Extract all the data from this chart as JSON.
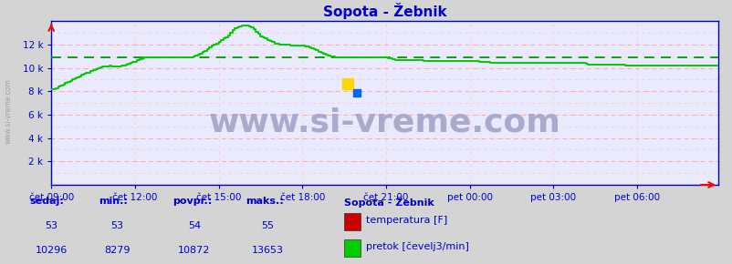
{
  "title": "Sopota - Žebnik",
  "bg_color": "#d4d4d4",
  "plot_bg_color": "#eaeaff",
  "grid_color_major": "#ffaaaa",
  "grid_color_minor": "#ffcccc",
  "ylim": [
    0,
    14000
  ],
  "xtick_positions": [
    0,
    36,
    72,
    108,
    144,
    180,
    216,
    252
  ],
  "xtick_labels": [
    "čet 09:00",
    "čet 12:00",
    "čet 15:00",
    "čet 18:00",
    "čet 21:00",
    "pet 00:00",
    "pet 03:00",
    "pet 06:00"
  ],
  "avg_line_value": 10872,
  "avg_line_color": "#009900",
  "flow_color": "#00cc00",
  "temp_color": "#cc0000",
  "watermark_text": "www.si-vreme.com",
  "watermark_color": "#aaaacc",
  "watermark_fontsize": 26,
  "sidebar_text": "www.si-vreme.com",
  "sidebar_color": "#999999",
  "footer_bg": "#ffffff",
  "footer_text_color": "#0000cc",
  "title_color": "#0000cc",
  "axis_color": "#0000cc",
  "tick_color": "#0000cc",
  "flow_data": [
    8200,
    8200,
    8250,
    8400,
    8500,
    8600,
    8700,
    8800,
    8900,
    9000,
    9100,
    9200,
    9300,
    9400,
    9500,
    9550,
    9600,
    9700,
    9800,
    9900,
    10000,
    10050,
    10100,
    10100,
    10150,
    10200,
    10150,
    10100,
    10100,
    10150,
    10200,
    10200,
    10250,
    10350,
    10450,
    10500,
    10550,
    10650,
    10750,
    10850,
    10900,
    10900,
    10900,
    10900,
    10900,
    10900,
    10900,
    10900,
    10900,
    10900,
    10900,
    10900,
    10900,
    10900,
    10900,
    10900,
    10900,
    10900,
    10900,
    10900,
    10900,
    10950,
    11050,
    11150,
    11250,
    11350,
    11450,
    11600,
    11750,
    11900,
    12000,
    12100,
    12200,
    12350,
    12500,
    12650,
    12800,
    13000,
    13200,
    13400,
    13500,
    13550,
    13600,
    13600,
    13600,
    13550,
    13450,
    13300,
    13100,
    12900,
    12700,
    12600,
    12500,
    12400,
    12300,
    12200,
    12100,
    12050,
    12000,
    12000,
    12000,
    12000,
    12000,
    11950,
    11900,
    11900,
    11900,
    11900,
    11900,
    11850,
    11800,
    11750,
    11700,
    11600,
    11500,
    11400,
    11300,
    11200,
    11100,
    11050,
    11000,
    10950,
    10900,
    10900,
    10900,
    10900,
    10900,
    10900,
    10900,
    10900,
    10900,
    10900,
    10900,
    10900,
    10900,
    10900,
    10900,
    10900,
    10900,
    10900,
    10900,
    10900,
    10900,
    10900,
    10900,
    10850,
    10800,
    10750,
    10700,
    10700,
    10700,
    10700,
    10700,
    10700,
    10700,
    10700,
    10700,
    10700,
    10700,
    10650,
    10600,
    10600,
    10600,
    10600,
    10600,
    10600,
    10600,
    10600,
    10600,
    10600,
    10600,
    10600,
    10600,
    10600,
    10600,
    10600,
    10600,
    10600,
    10600,
    10600,
    10600,
    10600,
    10600,
    10600,
    10550,
    10500,
    10500,
    10500,
    10500,
    10450,
    10400,
    10400,
    10400,
    10400,
    10400,
    10400,
    10400,
    10400,
    10400,
    10400,
    10400,
    10400,
    10400,
    10400,
    10400,
    10400,
    10400,
    10400,
    10400,
    10400,
    10400,
    10400,
    10400,
    10400,
    10400,
    10400,
    10400,
    10400,
    10400,
    10400,
    10400,
    10400,
    10400,
    10400,
    10400,
    10400,
    10400,
    10400,
    10400,
    10400,
    10350,
    10300,
    10300,
    10300,
    10300,
    10300,
    10300,
    10300,
    10300,
    10300,
    10300,
    10300,
    10300,
    10300,
    10300,
    10300,
    10250,
    10200,
    10200,
    10200,
    10200,
    10200,
    10200,
    10200,
    10200,
    10200,
    10200,
    10200,
    10200,
    10200,
    10200,
    10200,
    10200,
    10200,
    10200,
    10200,
    10200,
    10200,
    10200,
    10200,
    10200,
    10200,
    10200,
    10200,
    10200,
    10200,
    10200,
    10200,
    10200,
    10200,
    10200,
    10200,
    10200,
    10200,
    10200,
    10200,
    10200,
    10200
  ],
  "footer": {
    "headers": [
      "sedaj:",
      "min.:",
      "povpr.:",
      "maks.:"
    ],
    "temp_values": [
      "53",
      "53",
      "54",
      "55"
    ],
    "flow_values": [
      "10296",
      "8279",
      "10872",
      "13653"
    ],
    "legend_title": "Sopota - Žebnik",
    "legend_items": [
      {
        "color": "#cc0000",
        "label": "temperatura [F]"
      },
      {
        "color": "#00cc00",
        "label": "pretok [čevelj3/min]"
      }
    ]
  }
}
